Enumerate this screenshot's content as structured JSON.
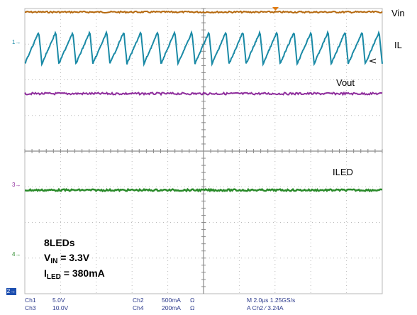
{
  "screen": {
    "colors": {
      "ch1": "#b5690f",
      "ch2": "#1a8aa6",
      "ch3": "#8e2d9c",
      "ch4": "#2a8a2a",
      "grid": "#b9b9b9"
    },
    "trace_labels": {
      "vin": "Vin",
      "il": "IL",
      "vout": "Vout",
      "iled": "ILED"
    },
    "ground_markers": {
      "m1": "1",
      "m3": "3",
      "m4": "4",
      "m2": "2"
    },
    "annotation": {
      "line1": "8LEDs",
      "vin_main": "V",
      "vin_sub": "IN",
      "vin_value": " = 3.3V",
      "iled_main": "I",
      "iled_sub": "LED",
      "iled_value": " = 380mA"
    },
    "status": {
      "ch1_name": "Ch1",
      "ch1_scale": "5.0V",
      "ch3_name": "Ch3",
      "ch3_scale": "10.0V",
      "ch2_name": "Ch2",
      "ch2_scale": "500mA",
      "ch2_unit": "Ω",
      "ch4_name": "Ch4",
      "ch4_scale": "200mA",
      "ch4_unit": "Ω",
      "timebase": "M 2.0µs 1.25GS/s",
      "trigger": "A  Ch2  ∕  3.24A"
    }
  }
}
